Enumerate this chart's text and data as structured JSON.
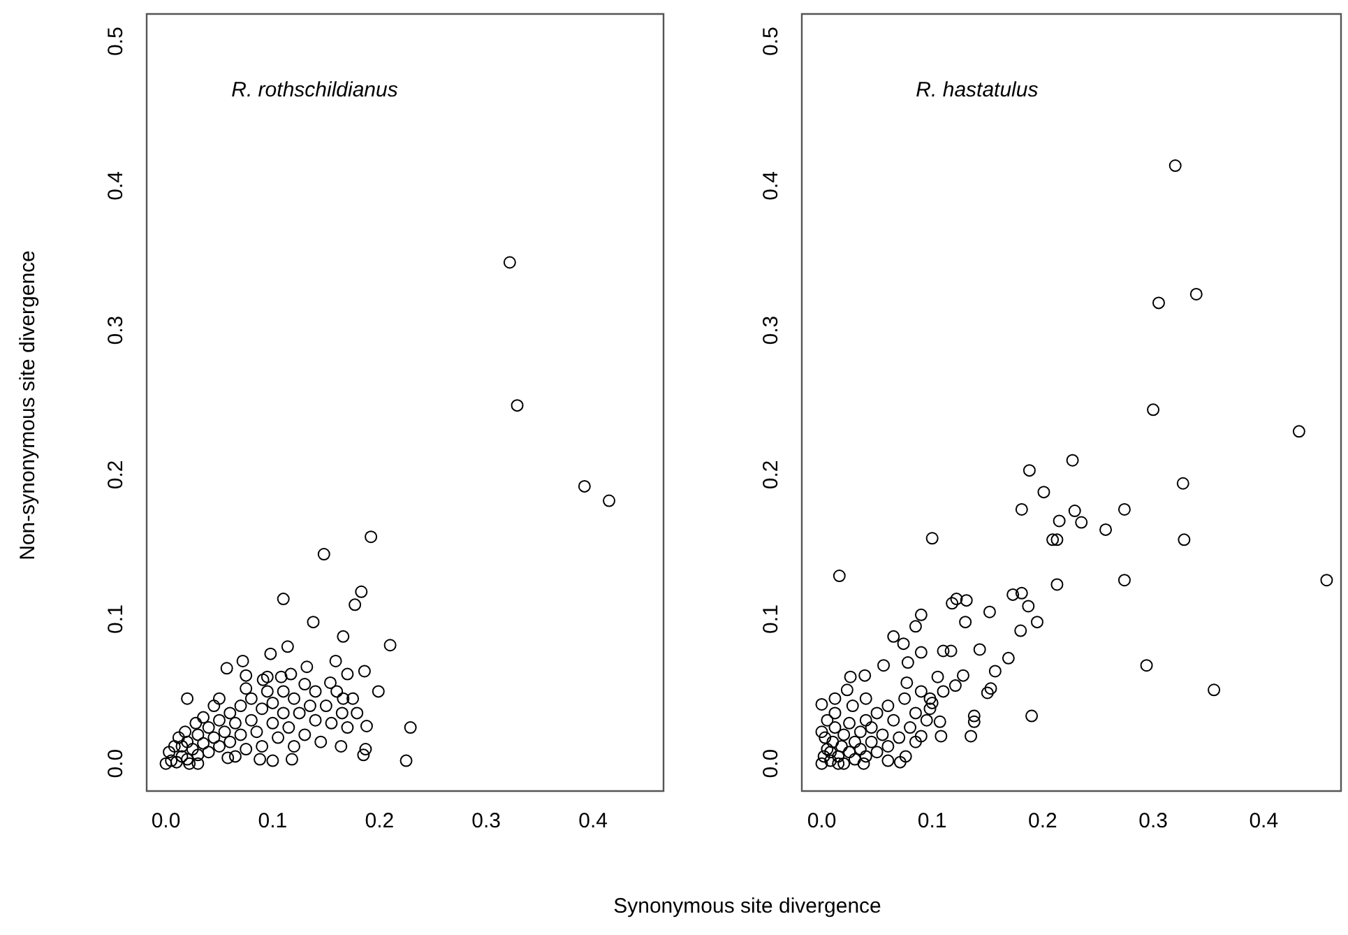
{
  "chart_data": [
    {
      "type": "scatter",
      "title": "R. rothschildianus",
      "xlabel": "Synonymous site divergence",
      "ylabel": "Non-synonymous site divergence",
      "color": "#000000",
      "marker": "circle",
      "grid": false,
      "legend": false,
      "xlim": [
        -0.018,
        0.466
      ],
      "ylim": [
        -0.019,
        0.519
      ],
      "xticks": [
        {
          "value": 0,
          "label": "0.0"
        },
        {
          "value": 0.1,
          "label": "0.1"
        },
        {
          "value": 0.2,
          "label": "0.2"
        },
        {
          "value": 0.3,
          "label": "0.3"
        },
        {
          "value": 0.4,
          "label": "0.4"
        }
      ],
      "yticks": [
        {
          "value": 0,
          "label": "0.0"
        },
        {
          "value": 0.1,
          "label": "0.1"
        },
        {
          "value": 0.2,
          "label": "0.2"
        },
        {
          "value": 0.3,
          "label": "0.3"
        },
        {
          "value": 0.4,
          "label": "0.4"
        },
        {
          "value": 0.5,
          "label": "0.5"
        }
      ],
      "x": [
        0.322,
        0.329,
        0.392,
        0.415,
        0.192,
        0.148,
        0.11,
        0.183,
        0.177,
        0.138,
        0.166,
        0.21,
        0.114,
        0.098,
        0.057,
        0.072,
        0.132,
        0.159,
        0.186,
        0.075,
        0.02,
        0.199,
        0.229,
        0.225,
        0.188,
        0.185,
        0.187,
        0.164,
        0.179,
        0.166,
        0.17,
        0.154,
        0.091,
        0.117,
        0,
        0.005,
        0.01,
        0.003,
        0.008,
        0.015,
        0.02,
        0.012,
        0.02,
        0.025,
        0.03,
        0.03,
        0.035,
        0.04,
        0.04,
        0.045,
        0.05,
        0.05,
        0.055,
        0.06,
        0.06,
        0.065,
        0.07,
        0.07,
        0.075,
        0.08,
        0.08,
        0.085,
        0.09,
        0.09,
        0.095,
        0.1,
        0.1,
        0.105,
        0.11,
        0.11,
        0.115,
        0.12,
        0.12,
        0.125,
        0.13,
        0.13,
        0.135,
        0.14,
        0.14,
        0.145,
        0.15,
        0.155,
        0.16,
        0.165,
        0.17,
        0.175,
        0.018,
        0.028,
        0.045,
        0.058,
        0.088,
        0.1,
        0.118,
        0.065,
        0.05,
        0.035,
        0.075,
        0.095,
        0.108,
        0.03,
        0.015,
        0.022
      ],
      "values": [
        0.347,
        0.248,
        0.192,
        0.182,
        0.157,
        0.145,
        0.114,
        0.119,
        0.11,
        0.098,
        0.088,
        0.082,
        0.081,
        0.076,
        0.066,
        0.071,
        0.067,
        0.071,
        0.064,
        0.061,
        0.045,
        0.05,
        0.025,
        0.002,
        0.026,
        0.006,
        0.01,
        0.012,
        0.035,
        0.045,
        0.062,
        0.056,
        0.058,
        0.062,
        0,
        0.002,
        0.001,
        0.008,
        0.012,
        0.005,
        0.003,
        0.018,
        0.015,
        0.01,
        0.006,
        0.02,
        0.014,
        0.008,
        0.025,
        0.018,
        0.012,
        0.03,
        0.022,
        0.015,
        0.035,
        0.028,
        0.02,
        0.04,
        0.01,
        0.03,
        0.045,
        0.022,
        0.038,
        0.012,
        0.05,
        0.028,
        0.042,
        0.018,
        0.035,
        0.05,
        0.025,
        0.045,
        0.012,
        0.035,
        0.055,
        0.02,
        0.04,
        0.03,
        0.05,
        0.015,
        0.04,
        0.028,
        0.05,
        0.035,
        0.025,
        0.045,
        0.022,
        0.028,
        0.04,
        0.004,
        0.003,
        0.002,
        0.003,
        0.005,
        0.045,
        0.032,
        0.052,
        0.06,
        0.06,
        0,
        0.012,
        0
      ]
    },
    {
      "type": "scatter",
      "title": "R. hastatulus",
      "color": "#000000",
      "marker": "circle",
      "grid": false,
      "legend": false,
      "xlim": [
        -0.018,
        0.47
      ],
      "ylim": [
        -0.019,
        0.519
      ],
      "xticks": [
        {
          "value": 0,
          "label": "0.0"
        },
        {
          "value": 0.1,
          "label": "0.1"
        },
        {
          "value": 0.2,
          "label": "0.2"
        },
        {
          "value": 0.3,
          "label": "0.3"
        },
        {
          "value": 0.4,
          "label": "0.4"
        }
      ],
      "yticks": [
        {
          "value": 0,
          "label": "0.0"
        },
        {
          "value": 0.1,
          "label": "0.1"
        },
        {
          "value": 0.2,
          "label": "0.2"
        },
        {
          "value": 0.3,
          "label": "0.3"
        },
        {
          "value": 0.4,
          "label": "0.4"
        },
        {
          "value": 0.5,
          "label": "0.5"
        }
      ],
      "x": [
        0.32,
        0.305,
        0.339,
        0.3,
        0.432,
        0.227,
        0.188,
        0.201,
        0.327,
        0.181,
        0.229,
        0.274,
        0.215,
        0.235,
        0.257,
        0.209,
        0.213,
        0.328,
        0.1,
        0.016,
        0.457,
        0.274,
        0.213,
        0.173,
        0.181,
        0.187,
        0.195,
        0.18,
        0.294,
        0.355,
        0.19,
        0.118,
        0.122,
        0.131,
        0.13,
        0.09,
        0.085,
        0.152,
        0.143,
        0.169,
        0.157,
        0.15,
        0.153,
        0.138,
        0.138,
        0.135,
        0.108,
        0.107,
        0.065,
        0.074,
        0.117,
        0.11,
        0.128,
        0.121,
        0.09,
        0.056,
        0.026,
        0.039,
        0.0,
        0.012,
        0.023,
        0.078,
        0.077,
        0.098,
        0.098,
        0.09,
        0.071,
        0.076,
        0,
        0.002,
        0.005,
        0.003,
        0.008,
        0.01,
        0.012,
        0.015,
        0.018,
        0.02,
        0.02,
        0.025,
        0.025,
        0.03,
        0.03,
        0.035,
        0.035,
        0.04,
        0.04,
        0.045,
        0.045,
        0.05,
        0.05,
        0.055,
        0.06,
        0.06,
        0.065,
        0.07,
        0.075,
        0.08,
        0.085,
        0.085,
        0.09,
        0.095,
        0.1,
        0.105,
        0.11,
        0.005,
        0.0,
        0.012,
        0.028,
        0.04,
        0.015,
        0.008,
        0.038,
        0.06
      ],
      "values": [
        0.414,
        0.319,
        0.325,
        0.245,
        0.23,
        0.21,
        0.203,
        0.188,
        0.194,
        0.176,
        0.175,
        0.176,
        0.168,
        0.167,
        0.162,
        0.155,
        0.155,
        0.155,
        0.156,
        0.13,
        0.127,
        0.127,
        0.124,
        0.117,
        0.118,
        0.109,
        0.098,
        0.092,
        0.068,
        0.051,
        0.033,
        0.111,
        0.114,
        0.113,
        0.098,
        0.103,
        0.095,
        0.105,
        0.079,
        0.073,
        0.064,
        0.049,
        0.052,
        0.033,
        0.029,
        0.019,
        0.019,
        0.029,
        0.088,
        0.083,
        0.078,
        0.078,
        0.061,
        0.054,
        0.077,
        0.068,
        0.06,
        0.061,
        0.041,
        0.045,
        0.051,
        0.07,
        0.056,
        0.045,
        0.038,
        0.019,
        0.001,
        0.005,
        0,
        0.005,
        0.01,
        0.018,
        0.002,
        0.015,
        0.025,
        0.005,
        0.012,
        0.02,
        0,
        0.008,
        0.028,
        0.015,
        0.003,
        0.022,
        0.01,
        0.005,
        0.03,
        0.015,
        0.025,
        0.008,
        0.035,
        0.02,
        0.012,
        0.04,
        0.03,
        0.018,
        0.045,
        0.025,
        0.035,
        0.015,
        0.05,
        0.03,
        0.042,
        0.06,
        0.05,
        0.03,
        0.022,
        0.035,
        0.04,
        0.045,
        0,
        0.008,
        0,
        0.002
      ]
    }
  ]
}
